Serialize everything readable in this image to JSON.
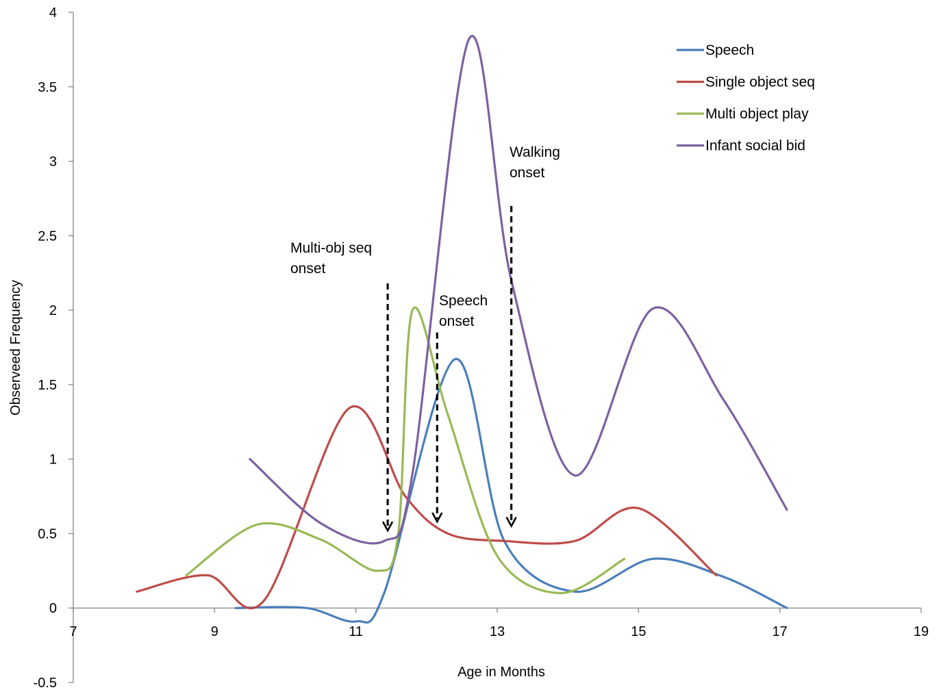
{
  "chart_data": {
    "type": "line",
    "title": "",
    "xlabel": "Age in Months",
    "ylabel": "Observeed Frequency",
    "xlim": [
      7,
      19
    ],
    "ylim": [
      -0.5,
      4
    ],
    "x_ticks": [
      7,
      9,
      11,
      13,
      15,
      17,
      19
    ],
    "y_ticks": [
      -0.5,
      0,
      0.5,
      1,
      1.5,
      2,
      2.5,
      3,
      3.5,
      4
    ],
    "x_tick_labels": [
      "7",
      "9",
      "11",
      "13",
      "15",
      "17",
      "19"
    ],
    "y_tick_labels": [
      "-0.5",
      "0",
      "0.5",
      "1",
      "1.5",
      "2",
      "2.5",
      "3",
      "3.5",
      "4"
    ],
    "grid": false,
    "legend_position": "top-right",
    "smooth": true,
    "series": [
      {
        "name": "Speech",
        "color": "#4A7EBB",
        "points": [
          [
            9.3,
            0
          ],
          [
            10.3,
            0
          ],
          [
            11.0,
            -0.09
          ],
          [
            11.4,
            0.1
          ],
          [
            12.4,
            1.67
          ],
          [
            13.1,
            0.45
          ],
          [
            14.1,
            0.11
          ],
          [
            15.2,
            0.33
          ],
          [
            16.2,
            0.21
          ],
          [
            17.1,
            0
          ]
        ]
      },
      {
        "name": "Single object seq",
        "color": "#BE4B48",
        "points": [
          [
            7.9,
            0.11
          ],
          [
            8.9,
            0.22
          ],
          [
            9.7,
            0.05
          ],
          [
            10.9,
            1.34
          ],
          [
            11.7,
            0.75
          ],
          [
            12.3,
            0.5
          ],
          [
            13.1,
            0.45
          ],
          [
            14.1,
            0.45
          ],
          [
            15.0,
            0.67
          ],
          [
            16.1,
            0.22
          ]
        ]
      },
      {
        "name": "Multi object play",
        "color": "#98B954",
        "points": [
          [
            8.6,
            0.22
          ],
          [
            9.6,
            0.56
          ],
          [
            10.5,
            0.46
          ],
          [
            11.3,
            0.25
          ],
          [
            11.6,
            0.5
          ],
          [
            11.8,
            2.0
          ],
          [
            12.3,
            1.3
          ],
          [
            13.0,
            0.35
          ],
          [
            13.9,
            0.1
          ],
          [
            14.8,
            0.33
          ]
        ]
      },
      {
        "name": "Infant social bid",
        "color": "#7D60A0",
        "points": [
          [
            9.5,
            1.0
          ],
          [
            10.5,
            0.57
          ],
          [
            11.4,
            0.45
          ],
          [
            11.8,
            0.9
          ],
          [
            12.6,
            3.82
          ],
          [
            13.2,
            2.2
          ],
          [
            14.1,
            0.89
          ],
          [
            15.2,
            2.01
          ],
          [
            16.2,
            1.4
          ],
          [
            17.1,
            0.66
          ]
        ]
      }
    ],
    "annotations": [
      {
        "text_lines": [
          "Multi-obj seq",
          "onset"
        ],
        "arrow_x": 11.45,
        "arrow_y_top": 2.18,
        "arrow_y_bottom": 0.52
      },
      {
        "text_lines": [
          "Speech",
          "onset"
        ],
        "arrow_x": 12.15,
        "arrow_y_top": 1.85,
        "arrow_y_bottom": 0.58
      },
      {
        "text_lines": [
          "Walking",
          "onset"
        ],
        "arrow_x": 13.2,
        "arrow_y_top": 2.7,
        "arrow_y_bottom": 0.55
      }
    ]
  }
}
